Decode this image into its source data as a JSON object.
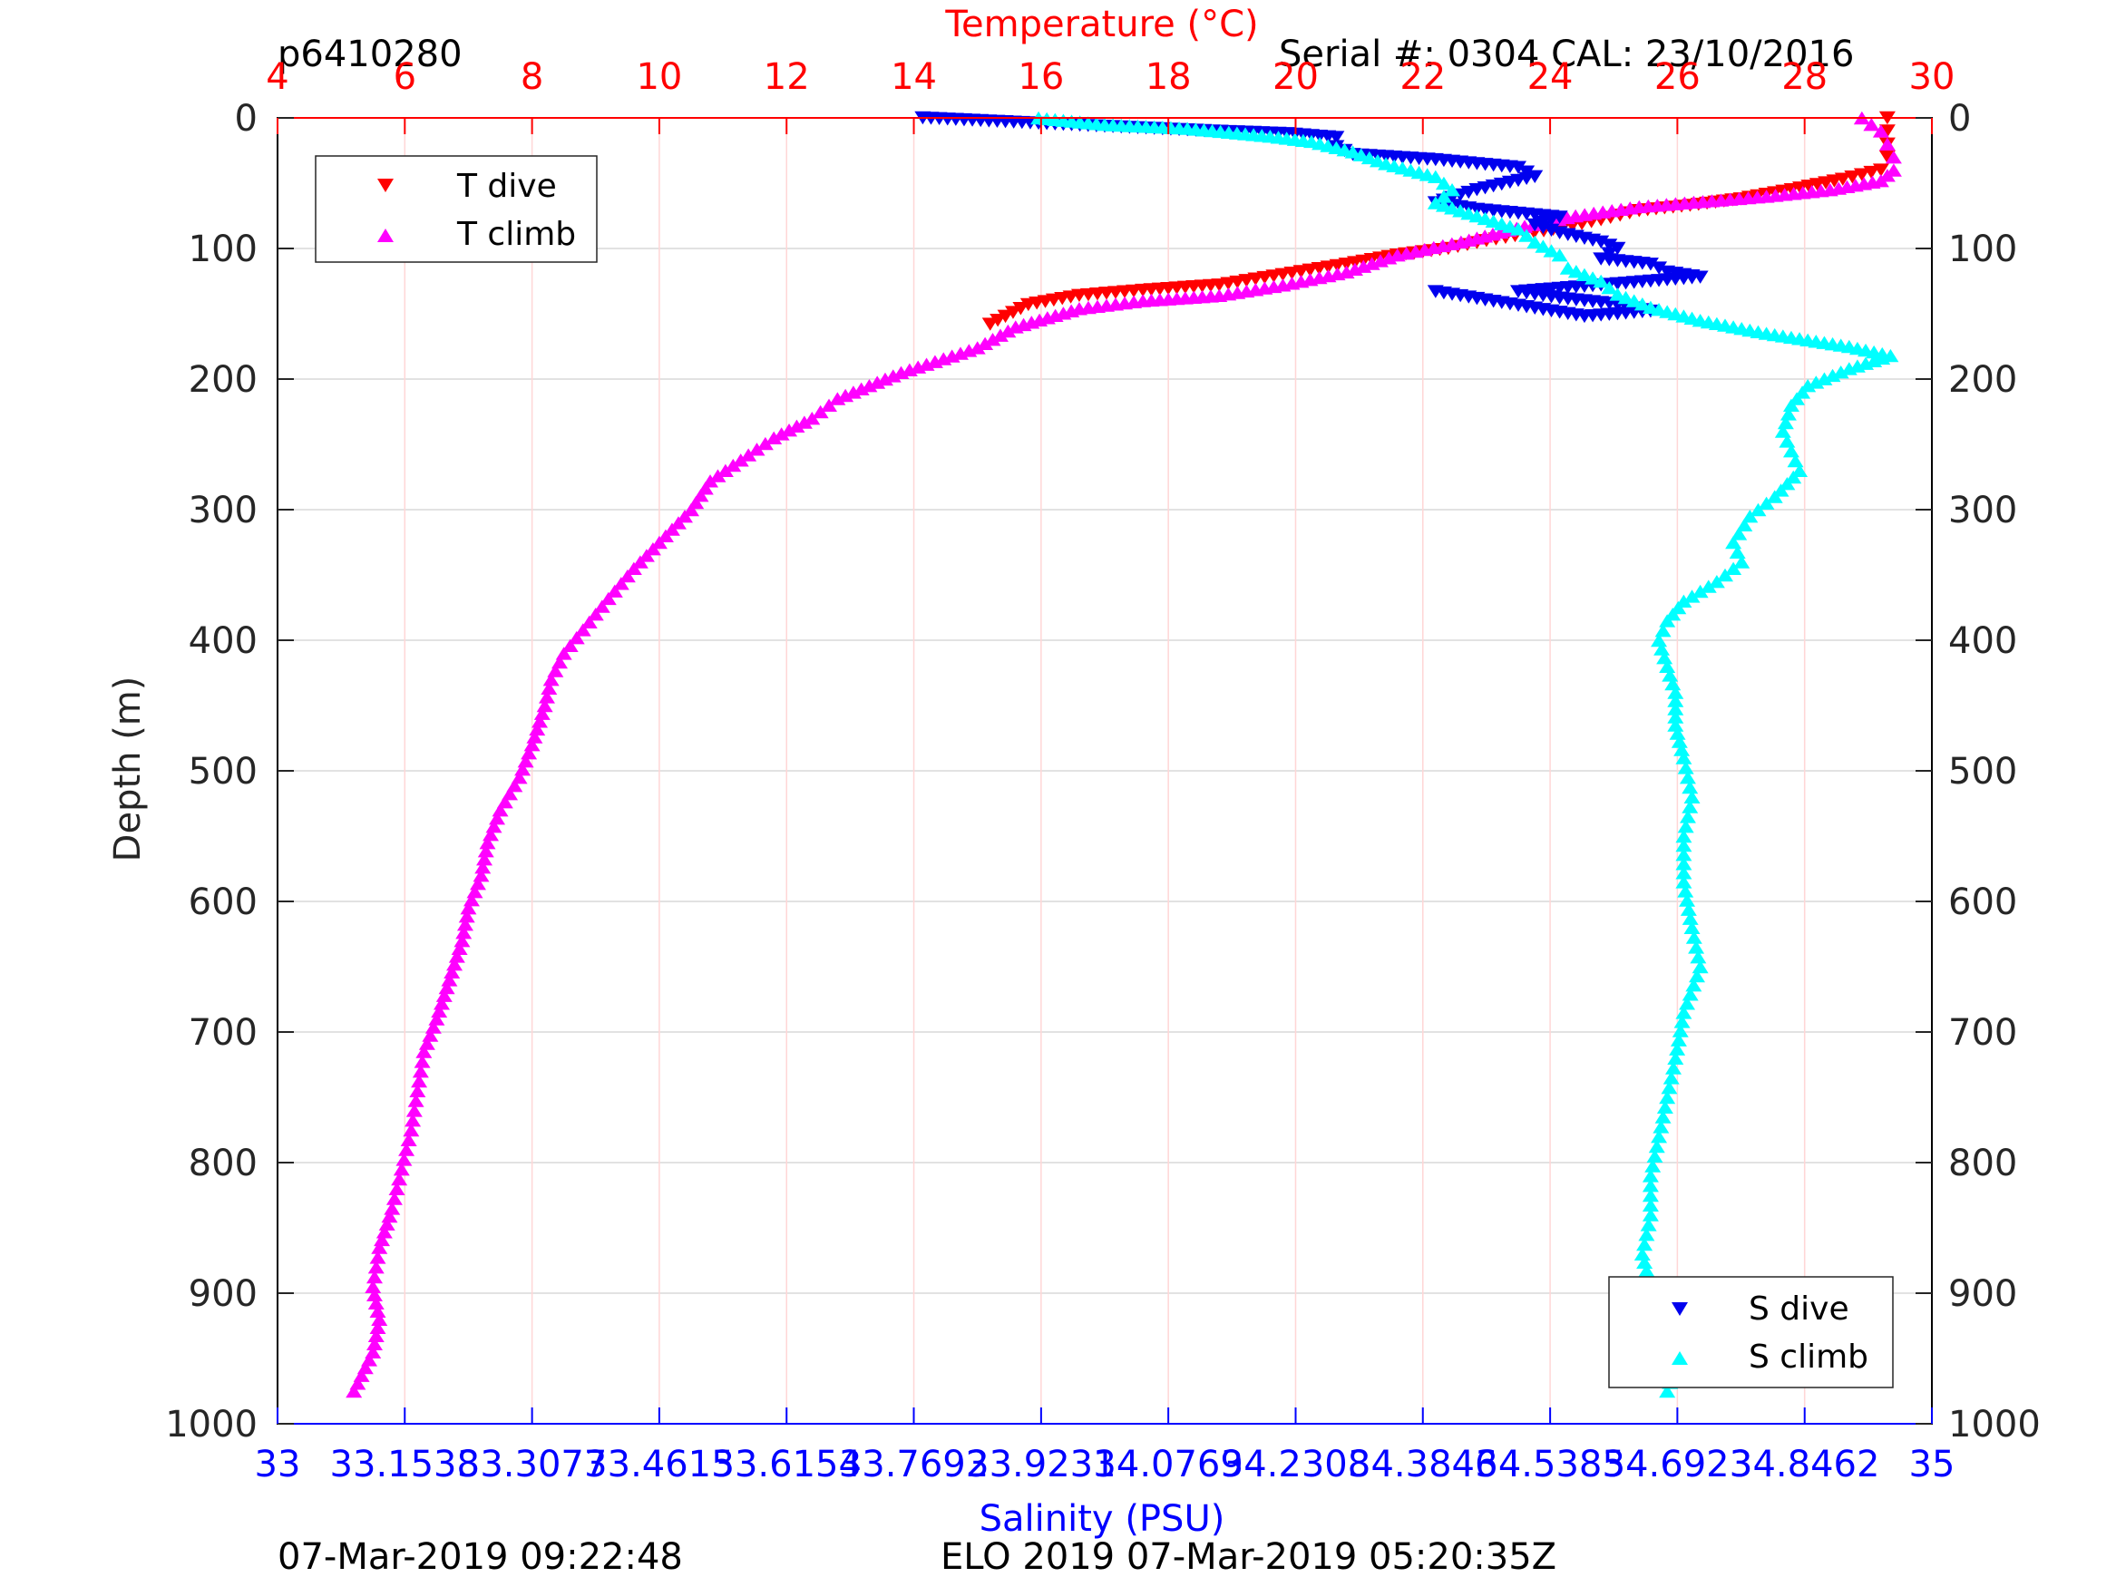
{
  "header": {
    "profile_id": "p6410280",
    "serial_cal": "Serial #: 0304  CAL: 23/10/2016"
  },
  "footer": {
    "left_timestamp": "07-Mar-2019 09:22:48",
    "center_text": "ELO 2019 07-Mar-2019 05:20:35Z"
  },
  "colors": {
    "temperature_axis": "#ff0000",
    "salinity_axis": "#0000ff",
    "t_dive": "#ff0000",
    "t_climb": "#ff00ff",
    "s_dive": "#0000ee",
    "s_climb": "#00ffff"
  },
  "chart_data": {
    "type": "scatter",
    "title": "",
    "ylabel": "Depth (m)",
    "y_reversed": true,
    "ylim": [
      0,
      1000
    ],
    "yticks": [
      "0",
      "100",
      "200",
      "300",
      "400",
      "500",
      "600",
      "700",
      "800",
      "900",
      "1000"
    ],
    "top_axis": {
      "label": "Temperature (°C)",
      "lim": [
        4,
        30
      ],
      "ticks": [
        "4",
        "6",
        "8",
        "10",
        "12",
        "14",
        "16",
        "18",
        "20",
        "22",
        "24",
        "26",
        "28",
        "30"
      ]
    },
    "bottom_axis": {
      "label": "Salinity (PSU)",
      "lim": [
        33,
        35
      ],
      "ticks": [
        "33",
        "33.1538",
        "33.3077",
        "33.4615",
        "33.6154",
        "33.7692",
        "33.9231",
        "34.0769",
        "34.2308",
        "34.3846",
        "34.5385",
        "34.6923",
        "34.8462",
        "35"
      ]
    },
    "grid": true,
    "legends": [
      {
        "placement": "top-left",
        "entries": [
          "T dive",
          "T climb"
        ]
      },
      {
        "placement": "bottom-right",
        "entries": [
          "S dive",
          "S climb"
        ]
      }
    ],
    "series": [
      {
        "name": "T dive",
        "axis": "temperature",
        "marker": "triangle-down",
        "color": "#ff0000",
        "points": [
          [
            29.3,
            0
          ],
          [
            29.3,
            10
          ],
          [
            29.3,
            20
          ],
          [
            29.3,
            30
          ],
          [
            29.2,
            40
          ],
          [
            28.6,
            47
          ],
          [
            27.8,
            55
          ],
          [
            27.0,
            62
          ],
          [
            26.2,
            67
          ],
          [
            25.4,
            71
          ],
          [
            24.8,
            78
          ],
          [
            24.2,
            84
          ],
          [
            23.6,
            89
          ],
          [
            23.0,
            94
          ],
          [
            22.4,
            100
          ],
          [
            21.6,
            105
          ],
          [
            20.8,
            112
          ],
          [
            19.8,
            120
          ],
          [
            18.8,
            128
          ],
          [
            17.6,
            132
          ],
          [
            16.6,
            136
          ],
          [
            15.8,
            143
          ],
          [
            15.2,
            158
          ]
        ]
      },
      {
        "name": "T climb",
        "axis": "temperature",
        "marker": "triangle-up",
        "color": "#ff00ff",
        "points": [
          [
            28.9,
            0
          ],
          [
            29.2,
            10
          ],
          [
            29.3,
            20
          ],
          [
            29.4,
            30
          ],
          [
            29.4,
            40
          ],
          [
            29.2,
            48
          ],
          [
            28.4,
            55
          ],
          [
            27.4,
            60
          ],
          [
            26.4,
            64
          ],
          [
            25.4,
            68
          ],
          [
            24.4,
            75
          ],
          [
            23.6,
            83
          ],
          [
            22.6,
            95
          ],
          [
            21.6,
            105
          ],
          [
            20.8,
            118
          ],
          [
            19.8,
            128
          ],
          [
            18.8,
            136
          ],
          [
            17.6,
            140
          ],
          [
            16.6,
            146
          ],
          [
            15.6,
            160
          ],
          [
            15.0,
            176
          ],
          [
            13.8,
            195
          ],
          [
            12.8,
            215
          ],
          [
            12.4,
            230
          ],
          [
            11.8,
            245
          ],
          [
            11.4,
            258
          ],
          [
            10.8,
            278
          ],
          [
            10.5,
            300
          ],
          [
            10.1,
            320
          ],
          [
            9.6,
            345
          ],
          [
            9.2,
            368
          ],
          [
            8.8,
            392
          ],
          [
            8.5,
            410
          ],
          [
            8.3,
            430
          ],
          [
            8.2,
            450
          ],
          [
            8.0,
            480
          ],
          [
            7.8,
            505
          ],
          [
            7.5,
            530
          ],
          [
            7.3,
            555
          ],
          [
            7.2,
            580
          ],
          [
            7.0,
            605
          ],
          [
            6.9,
            630
          ],
          [
            6.7,
            660
          ],
          [
            6.5,
            690
          ],
          [
            6.3,
            715
          ],
          [
            6.2,
            745
          ],
          [
            6.1,
            775
          ],
          [
            5.95,
            805
          ],
          [
            5.8,
            835
          ],
          [
            5.6,
            865
          ],
          [
            5.5,
            895
          ],
          [
            5.6,
            920
          ],
          [
            5.5,
            945
          ],
          [
            5.2,
            975
          ]
        ]
      },
      {
        "name": "S dive",
        "axis": "salinity",
        "marker": "triangle-down",
        "color": "#0000ee",
        "points": [
          [
            33.78,
            0
          ],
          [
            33.95,
            5
          ],
          [
            34.13,
            10
          ],
          [
            34.22,
            12
          ],
          [
            34.28,
            15
          ],
          [
            34.28,
            22
          ],
          [
            34.3,
            28
          ],
          [
            34.4,
            32
          ],
          [
            34.5,
            38
          ],
          [
            34.52,
            45
          ],
          [
            34.45,
            55
          ],
          [
            34.4,
            65
          ],
          [
            34.45,
            70
          ],
          [
            34.55,
            76
          ],
          [
            34.52,
            82
          ],
          [
            34.55,
            88
          ],
          [
            34.6,
            95
          ],
          [
            34.62,
            100
          ],
          [
            34.6,
            108
          ],
          [
            34.66,
            112
          ],
          [
            34.68,
            118
          ],
          [
            34.72,
            122
          ],
          [
            34.5,
            133
          ],
          [
            34.55,
            138
          ],
          [
            34.61,
            142
          ],
          [
            34.66,
            148
          ],
          [
            34.58,
            152
          ],
          [
            34.4,
            133
          ]
        ]
      },
      {
        "name": "S climb",
        "axis": "salinity",
        "marker": "triangle-up",
        "color": "#00ffff",
        "points": [
          [
            33.92,
            0
          ],
          [
            34.0,
            5
          ],
          [
            34.1,
            8
          ],
          [
            34.2,
            14
          ],
          [
            34.25,
            18
          ],
          [
            34.3,
            26
          ],
          [
            34.34,
            35
          ],
          [
            34.4,
            45
          ],
          [
            34.42,
            55
          ],
          [
            34.4,
            65
          ],
          [
            34.45,
            75
          ],
          [
            34.5,
            85
          ],
          [
            34.52,
            95
          ],
          [
            34.55,
            105
          ],
          [
            34.56,
            115
          ],
          [
            34.6,
            125
          ],
          [
            34.62,
            135
          ],
          [
            34.66,
            145
          ],
          [
            34.72,
            155
          ],
          [
            34.8,
            165
          ],
          [
            34.9,
            175
          ],
          [
            34.95,
            182
          ],
          [
            34.9,
            192
          ],
          [
            34.85,
            205
          ],
          [
            34.83,
            220
          ],
          [
            34.82,
            240
          ],
          [
            34.83,
            255
          ],
          [
            34.84,
            270
          ],
          [
            34.81,
            290
          ],
          [
            34.78,
            305
          ],
          [
            34.76,
            325
          ],
          [
            34.77,
            340
          ],
          [
            34.74,
            355
          ],
          [
            34.7,
            370
          ],
          [
            34.68,
            385
          ],
          [
            34.67,
            400
          ],
          [
            34.68,
            420
          ],
          [
            34.69,
            440
          ],
          [
            34.69,
            465
          ],
          [
            34.7,
            490
          ],
          [
            34.71,
            520
          ],
          [
            34.7,
            550
          ],
          [
            34.7,
            585
          ],
          [
            34.71,
            620
          ],
          [
            34.72,
            650
          ],
          [
            34.7,
            685
          ],
          [
            34.69,
            720
          ],
          [
            34.68,
            750
          ],
          [
            34.67,
            780
          ],
          [
            34.66,
            810
          ],
          [
            34.66,
            840
          ],
          [
            34.65,
            870
          ],
          [
            34.66,
            895
          ],
          [
            34.68,
            910
          ],
          [
            34.7,
            935
          ],
          [
            34.69,
            955
          ],
          [
            34.68,
            975
          ]
        ]
      }
    ]
  }
}
